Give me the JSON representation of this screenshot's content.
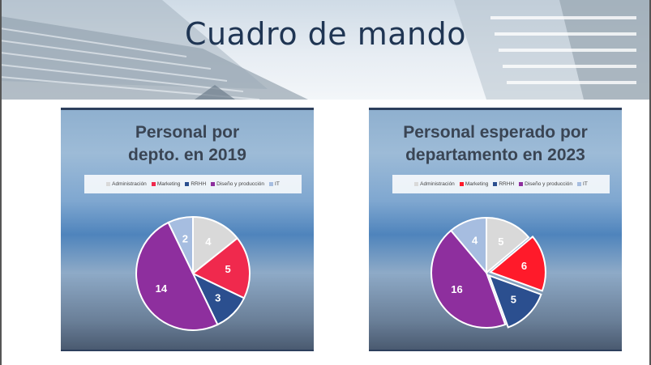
{
  "header": {
    "title": "Cuadro de mando"
  },
  "chart_data": [
    {
      "type": "pie",
      "title": "Personal por depto. en 2019",
      "title_lines": [
        "Personal por",
        "depto. en 2019"
      ],
      "legend_position": "top",
      "categories": [
        "Administración",
        "Marketing",
        "RRHH",
        "Diseño y producción",
        "IT"
      ],
      "values": [
        4,
        5,
        3,
        14,
        2
      ],
      "colors": [
        "#d9d9d9",
        "#f0294d",
        "#2b4f8f",
        "#8e2f9e",
        "#a6bde0"
      ]
    },
    {
      "type": "pie",
      "title": "Personal esperado por departamento en 2023",
      "title_lines": [
        "Personal esperado por",
        "departamento en 2023"
      ],
      "legend_position": "top",
      "categories": [
        "Administración",
        "Marketing",
        "RRHH",
        "Diseño y producción",
        "IT"
      ],
      "values": [
        5,
        6,
        5,
        16,
        4
      ],
      "colors": [
        "#d9d9d9",
        "#ff1a2a",
        "#2b4f8f",
        "#8e2f9e",
        "#a6bde0"
      ]
    }
  ]
}
